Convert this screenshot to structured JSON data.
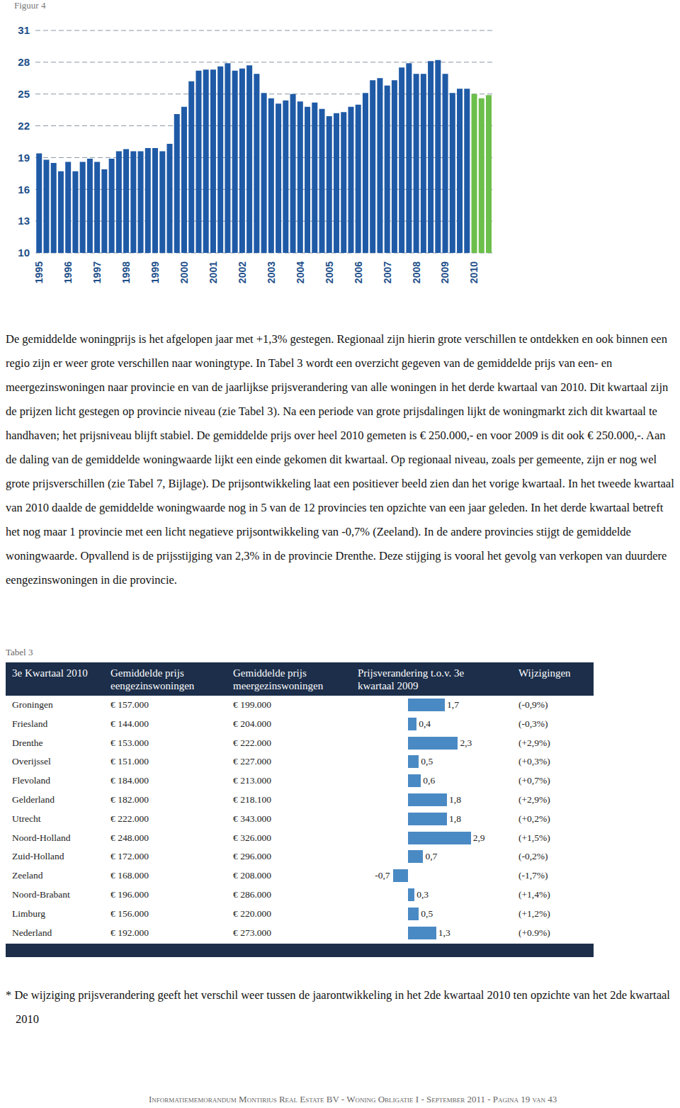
{
  "figure_label": "Figuur 4",
  "chart_data": {
    "type": "bar",
    "categories": [
      "1995",
      null,
      null,
      null,
      "1996",
      null,
      null,
      null,
      "1997",
      null,
      null,
      null,
      "1998",
      null,
      null,
      null,
      "1999",
      null,
      null,
      null,
      "2000",
      null,
      null,
      null,
      "2001",
      null,
      null,
      null,
      "2002",
      null,
      null,
      null,
      "2003",
      null,
      null,
      null,
      "2004",
      null,
      null,
      null,
      "2005",
      null,
      null,
      null,
      "2006",
      null,
      null,
      null,
      "2007",
      null,
      null,
      null,
      "2008",
      null,
      null,
      null,
      "2009",
      null,
      null,
      null,
      "2010",
      null,
      null
    ],
    "values": [
      19.4,
      18.8,
      18.5,
      17.7,
      18.6,
      17.7,
      18.6,
      18.9,
      18.6,
      17.9,
      18.9,
      19.6,
      19.8,
      19.6,
      19.6,
      19.9,
      19.9,
      19.6,
      20.3,
      23.1,
      23.8,
      26.2,
      27.2,
      27.3,
      27.3,
      27.6,
      27.9,
      27.2,
      27.4,
      27.7,
      26.9,
      25.1,
      24.6,
      24.1,
      24.4,
      25.0,
      24.3,
      23.8,
      24.2,
      23.6,
      22.9,
      23.2,
      23.3,
      23.8,
      24.0,
      25.1,
      26.3,
      26.5,
      25.8,
      26.3,
      27.5,
      27.9,
      26.9,
      26.9,
      28.1,
      28.2,
      26.9,
      25.1,
      25.5,
      25.5,
      25.0,
      24.6,
      24.9
    ],
    "colors": [
      "#1f5aa6",
      "#1f5aa6",
      "#1f5aa6",
      "#1f5aa6",
      "#1f5aa6",
      "#1f5aa6",
      "#1f5aa6",
      "#1f5aa6",
      "#1f5aa6",
      "#1f5aa6",
      "#1f5aa6",
      "#1f5aa6",
      "#1f5aa6",
      "#1f5aa6",
      "#1f5aa6",
      "#1f5aa6",
      "#1f5aa6",
      "#1f5aa6",
      "#1f5aa6",
      "#1f5aa6",
      "#1f5aa6",
      "#1f5aa6",
      "#1f5aa6",
      "#1f5aa6",
      "#1f5aa6",
      "#1f5aa6",
      "#1f5aa6",
      "#1f5aa6",
      "#1f5aa6",
      "#1f5aa6",
      "#1f5aa6",
      "#1f5aa6",
      "#1f5aa6",
      "#1f5aa6",
      "#1f5aa6",
      "#1f5aa6",
      "#1f5aa6",
      "#1f5aa6",
      "#1f5aa6",
      "#1f5aa6",
      "#1f5aa6",
      "#1f5aa6",
      "#1f5aa6",
      "#1f5aa6",
      "#1f5aa6",
      "#1f5aa6",
      "#1f5aa6",
      "#1f5aa6",
      "#1f5aa6",
      "#1f5aa6",
      "#1f5aa6",
      "#1f5aa6",
      "#1f5aa6",
      "#1f5aa6",
      "#1f5aa6",
      "#1f5aa6",
      "#1f5aa6",
      "#1f5aa6",
      "#1f5aa6",
      "#1f5aa6",
      "#6cbf4a",
      "#6cbf4a",
      "#6cbf4a"
    ],
    "ylim": [
      10,
      31
    ],
    "yticks": [
      10,
      13,
      16,
      19,
      22,
      25,
      28,
      31
    ],
    "grid": true
  },
  "paragraph": "De gemiddelde woningprijs is het afgelopen jaar met +1,3% gestegen. Regionaal zijn hierin grote verschillen te ontdekken en ook binnen een regio zijn er weer grote verschillen naar woningtype. In Tabel 3 wordt een overzicht gegeven van de gemiddelde prijs van een- en meergezinswoningen naar provincie en van de jaarlijkse prijsverandering van alle woningen in het derde kwartaal van 2010. Dit kwartaal zijn de prijzen licht gestegen op provincie niveau (zie Tabel 3). Na een periode van grote prijsdalingen lijkt de woningmarkt zich dit kwartaal te handhaven; het prijsniveau blijft stabiel. De gemiddelde prijs over heel 2010 gemeten is € 250.000,- en voor 2009 is dit ook € 250.000,-. Aan de daling van de gemiddelde woningwaarde lijkt een einde gekomen dit kwartaal. Op regionaal niveau, zoals per gemeente, zijn er nog wel grote prijsverschillen (zie Tabel 7, Bijlage). De prijsontwikkeling laat een positiever beeld zien dan het vorige kwartaal. In het tweede kwartaal van 2010 daalde de gemiddelde woningwaarde nog in 5 van de 12 provincies ten opzichte van een jaar geleden. In het derde kwartaal betreft het nog maar 1 provincie met een licht negatieve prijsontwikkeling van -0,7% (Zeeland). In de andere provincies stijgt de gemiddelde woningwaarde. Opvallend is de prijsstijging van 2,3% in de provincie Drenthe. Deze stijging is vooral het gevolg van verkopen van duurdere eengezinswoningen in die provincie.",
  "table": {
    "label": "Tabel 3",
    "header": [
      "3e Kwartaal 2010",
      "Gemiddelde prijs eengezinswoningen",
      "Gemiddelde prijs meergezinswoningen",
      "Prijsverandering t.o.v. 3e kwartaal 2009",
      "Wijzigingen"
    ],
    "rows": [
      {
        "region": "Groningen",
        "price_single": "€ 157.000",
        "price_multi": "€ 199.000",
        "change": 1.7,
        "change_label": "1,7",
        "wijziging": "(-0,9%)"
      },
      {
        "region": "Friesland",
        "price_single": "€ 144.000",
        "price_multi": "€ 204.000",
        "change": 0.4,
        "change_label": "0,4",
        "wijziging": "(-0,3%)"
      },
      {
        "region": "Drenthe",
        "price_single": "€ 153.000",
        "price_multi": "€ 222.000",
        "change": 2.3,
        "change_label": "2,3",
        "wijziging": "(+2,9%)"
      },
      {
        "region": "Overijssel",
        "price_single": "€ 151.000",
        "price_multi": "€ 227.000",
        "change": 0.5,
        "change_label": "0,5",
        "wijziging": "(+0,3%)"
      },
      {
        "region": "Flevoland",
        "price_single": "€ 184.000",
        "price_multi": "€ 213.000",
        "change": 0.6,
        "change_label": "0,6",
        "wijziging": "(+0,7%)"
      },
      {
        "region": "Gelderland",
        "price_single": "€ 182.000",
        "price_multi": "€ 218.100",
        "change": 1.8,
        "change_label": "1,8",
        "wijziging": "(+2,9%)"
      },
      {
        "region": "Utrecht",
        "price_single": "€ 222.000",
        "price_multi": "€ 343.000",
        "change": 1.8,
        "change_label": "1,8",
        "wijziging": "(+0,2%)"
      },
      {
        "region": "Noord-Holland",
        "price_single": "€ 248.000",
        "price_multi": "€ 326.000",
        "change": 2.9,
        "change_label": "2,9",
        "wijziging": "(+1,5%)"
      },
      {
        "region": "Zuid-Holland",
        "price_single": "€ 172.000",
        "price_multi": "€ 296.000",
        "change": 0.7,
        "change_label": "0,7",
        "wijziging": "(-0,2%)"
      },
      {
        "region": "Zeeland",
        "price_single": "€ 168.000",
        "price_multi": "€ 208.000",
        "change": -0.7,
        "change_label": "-0,7",
        "wijziging": "(-1,7%)"
      },
      {
        "region": "Noord-Brabant",
        "price_single": "€ 196.000",
        "price_multi": "€ 286.000",
        "change": 0.3,
        "change_label": "0,3",
        "wijziging": "(+1,4%)"
      },
      {
        "region": "Limburg",
        "price_single": "€ 156.000",
        "price_multi": "€ 220.000",
        "change": 0.5,
        "change_label": "0,5",
        "wijziging": "(+1,2%)"
      },
      {
        "region": "Nederland",
        "price_single": "€ 192.000",
        "price_multi": "€ 273.000",
        "change": 1.3,
        "change_label": "1,3",
        "wijziging": "(+0.9%)"
      }
    ]
  },
  "footnote": "* De wijziging prijsverandering geeft het verschil weer tussen de jaarontwikkeling in het 2de kwartaal 2010 ten opzichte van het 2de kwartaal 2010",
  "footer": "Informatiememorandum Montirius Real Estate BV - Woning Obligatie I - September 2011 - Pagina 19 van 43"
}
